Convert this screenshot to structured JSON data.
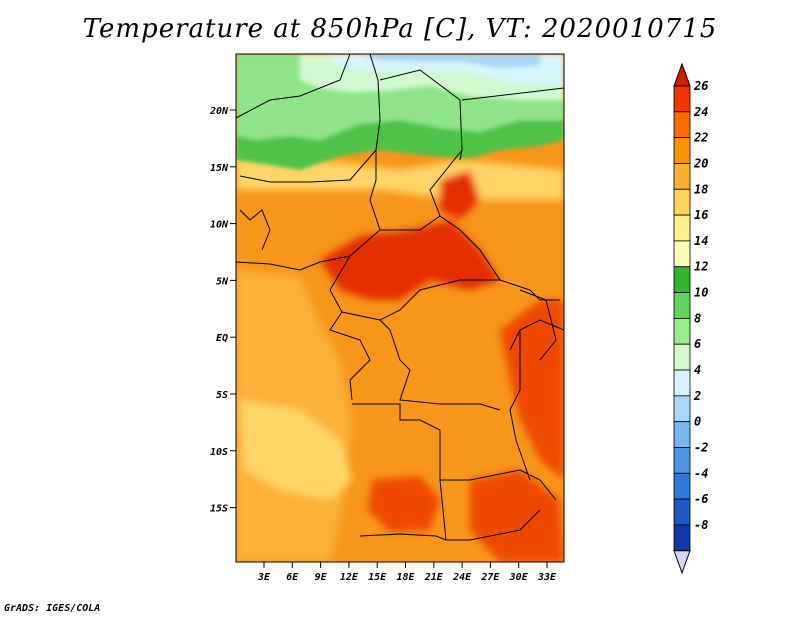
{
  "title": "Temperature at 850hPa [C], VT: 2020010715",
  "credit": "GrADS: IGES/COLA",
  "lat_labels": [
    "20N",
    "15N",
    "10N",
    "5N",
    "EQ",
    "5S",
    "10S",
    "15S"
  ],
  "lon_labels": [
    "3E",
    "6E",
    "9E",
    "12E",
    "15E",
    "18E",
    "21E",
    "24E",
    "27E",
    "30E",
    "33E"
  ],
  "colorbar": {
    "labels": [
      "26",
      "24",
      "22",
      "20",
      "18",
      "16",
      "14",
      "12",
      "10",
      "8",
      "6",
      "4",
      "2",
      "0",
      "-2",
      "-4",
      "-6",
      "-8"
    ],
    "colors": [
      "#d91c00",
      "#ee3800",
      "#f96a00",
      "#f79500",
      "#fbb030",
      "#ffd25a",
      "#ffee8c",
      "#fdfbb8",
      "#2fb52f",
      "#5fd35c",
      "#99ec8c",
      "#d3f9cb",
      "#d6f2fc",
      "#a9d7f9",
      "#78b6f0",
      "#4f93e5",
      "#3078dc",
      "#1e57c6",
      "#1038a8",
      "#061a70"
    ]
  },
  "map_colors": {
    "ocean": "#fbb038",
    "land_base": "#f7961a",
    "hot": "#ee4a00",
    "very_hot": "#e32d00",
    "cool": "#ffd568",
    "green": "#4fc24a",
    "light_green": "#8fe489",
    "pale": "#d2f8d0",
    "cyan": "#d8f4fc",
    "light_blue": "#a8d8f8"
  }
}
